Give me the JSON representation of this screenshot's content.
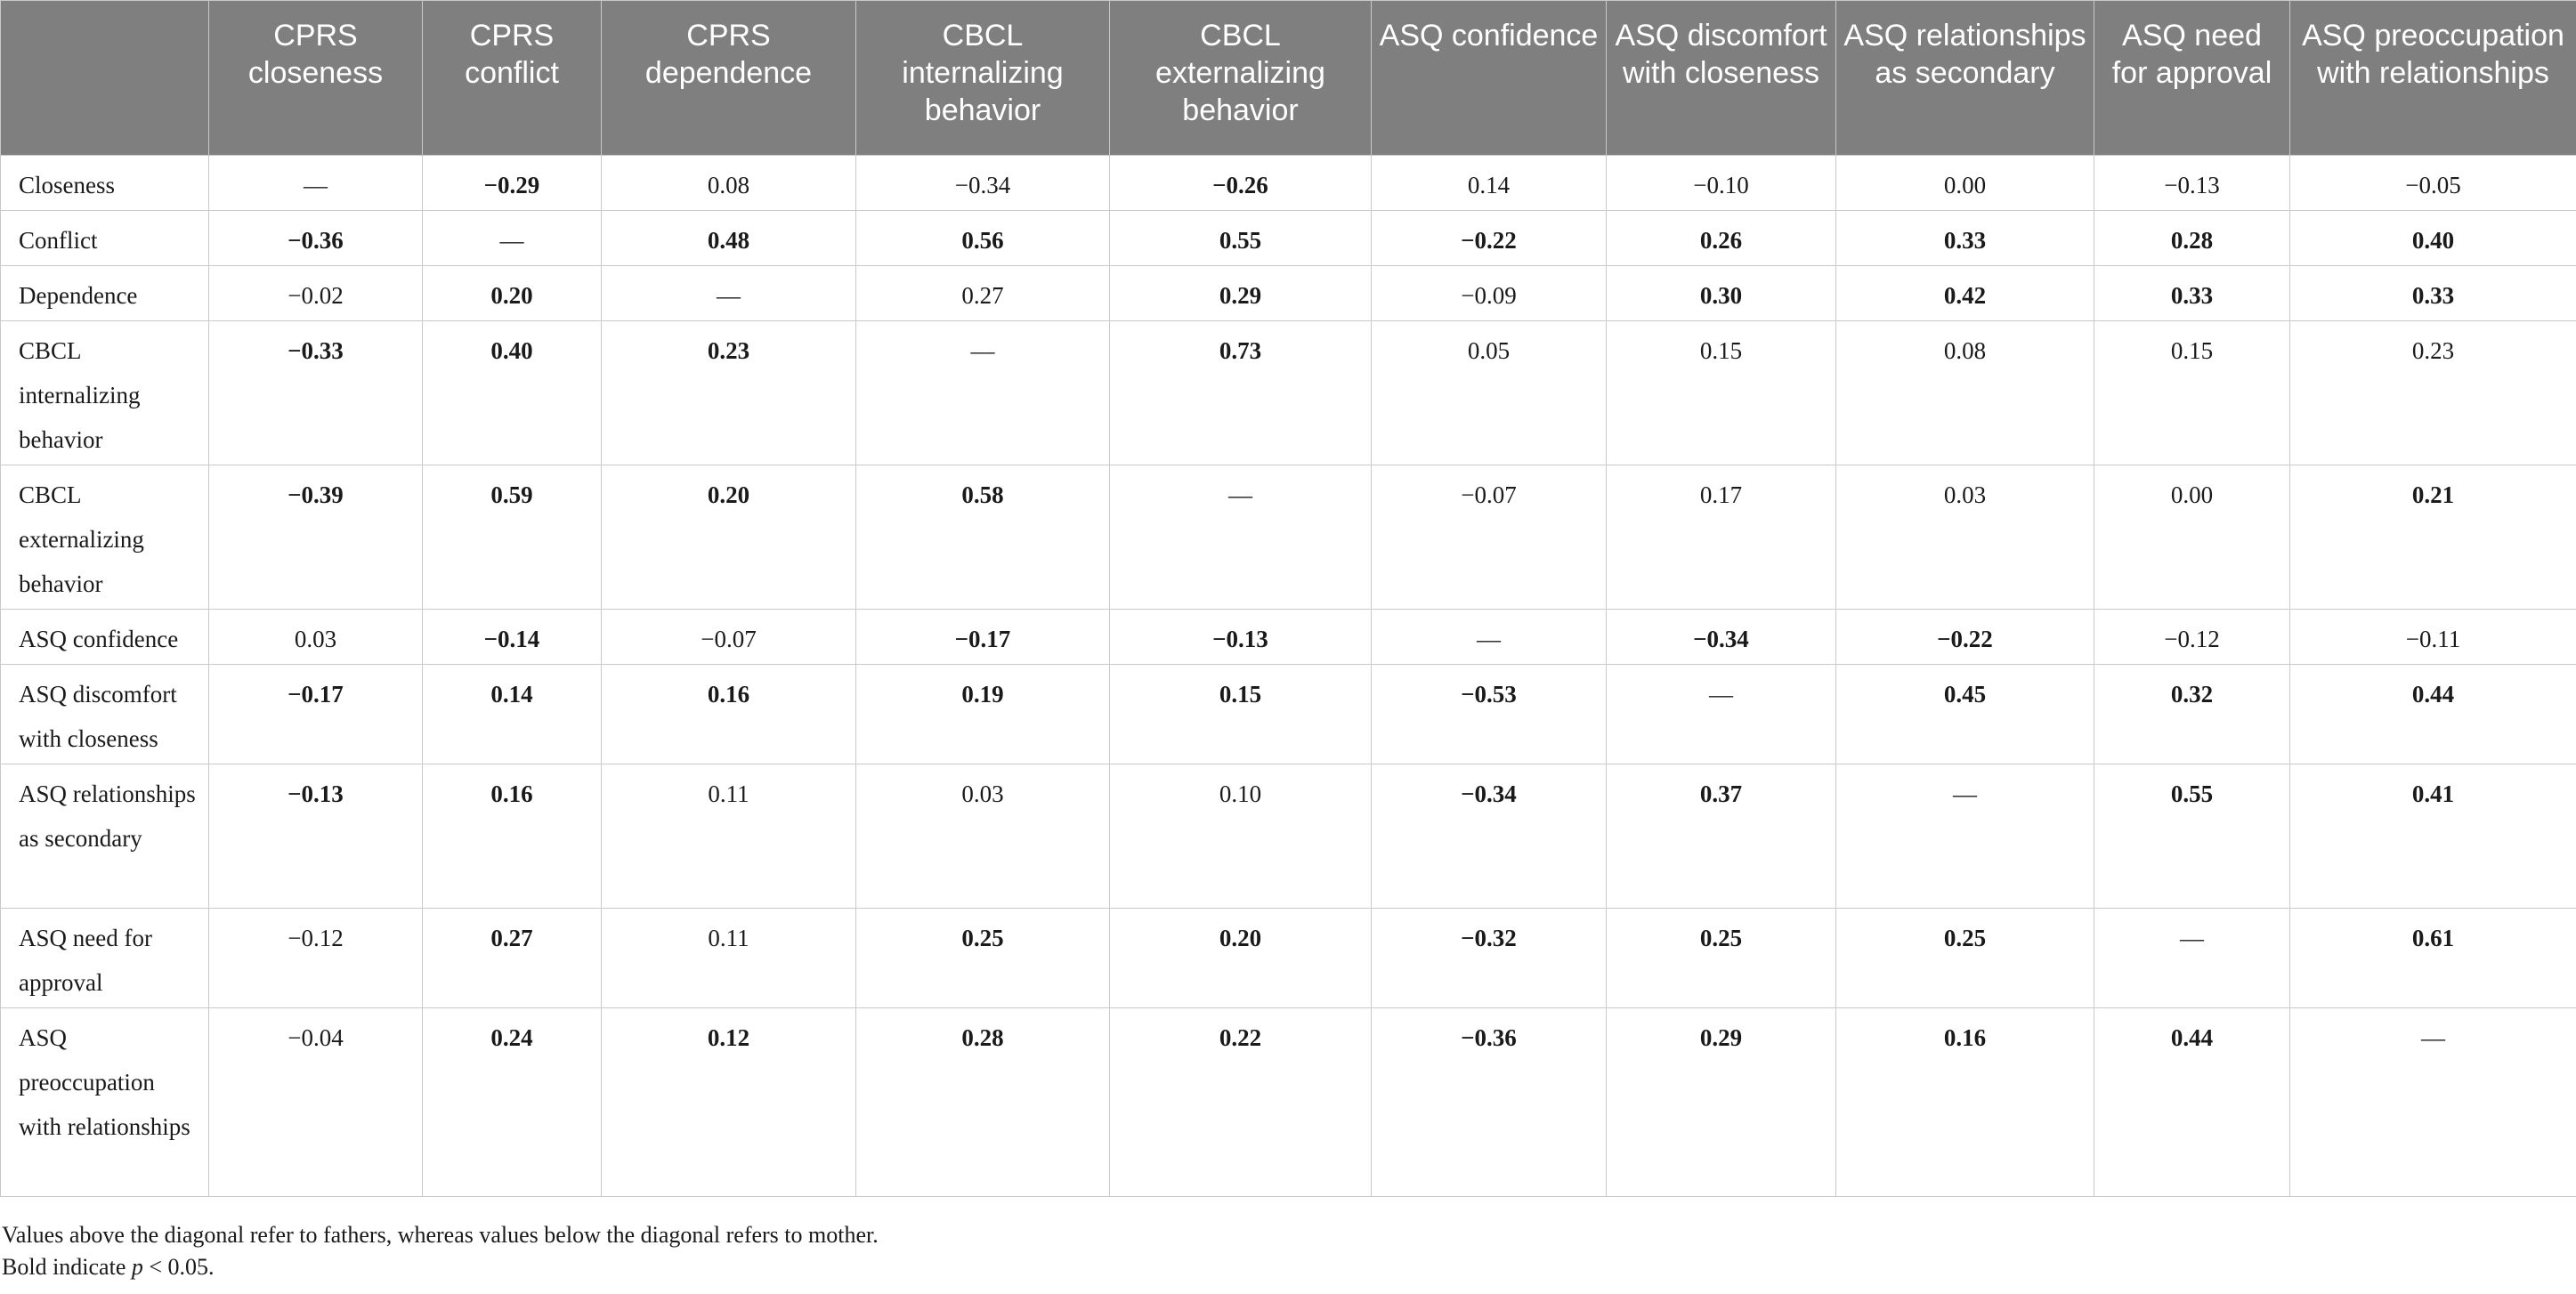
{
  "table": {
    "columns": [
      "CPRS closeness",
      "CPRS conflict",
      "CPRS dependence",
      "CBCL internalizing behavior",
      "CBCL externalizing behavior",
      "ASQ confidence",
      "ASQ discomfort with closeness",
      "ASQ relationships as secondary",
      "ASQ need for approval",
      "ASQ preoccupation with relationships"
    ],
    "rows": [
      {
        "label": "Closeness",
        "cells": [
          {
            "v": "—",
            "b": false
          },
          {
            "v": "−0.29",
            "b": true
          },
          {
            "v": "0.08",
            "b": false
          },
          {
            "v": "−0.34",
            "b": false
          },
          {
            "v": "−0.26",
            "b": true
          },
          {
            "v": "0.14",
            "b": false
          },
          {
            "v": "−0.10",
            "b": false
          },
          {
            "v": "0.00",
            "b": false
          },
          {
            "v": "−0.13",
            "b": false
          },
          {
            "v": "−0.05",
            "b": false
          }
        ]
      },
      {
        "label": "Conflict",
        "cells": [
          {
            "v": "−0.36",
            "b": true
          },
          {
            "v": "—",
            "b": false
          },
          {
            "v": "0.48",
            "b": true
          },
          {
            "v": "0.56",
            "b": true
          },
          {
            "v": "0.55",
            "b": true
          },
          {
            "v": "−0.22",
            "b": true
          },
          {
            "v": "0.26",
            "b": true
          },
          {
            "v": "0.33",
            "b": true
          },
          {
            "v": "0.28",
            "b": true
          },
          {
            "v": "0.40",
            "b": true
          }
        ]
      },
      {
        "label": "Dependence",
        "cells": [
          {
            "v": "−0.02",
            "b": false
          },
          {
            "v": "0.20",
            "b": true
          },
          {
            "v": "—",
            "b": false
          },
          {
            "v": "0.27",
            "b": false
          },
          {
            "v": "0.29",
            "b": true
          },
          {
            "v": "−0.09",
            "b": false
          },
          {
            "v": "0.30",
            "b": true
          },
          {
            "v": "0.42",
            "b": true
          },
          {
            "v": "0.33",
            "b": true
          },
          {
            "v": "0.33",
            "b": true
          }
        ]
      },
      {
        "label": "CBCL internalizing behavior",
        "cells": [
          {
            "v": "−0.33",
            "b": true
          },
          {
            "v": "0.40",
            "b": true
          },
          {
            "v": "0.23",
            "b": true
          },
          {
            "v": "—",
            "b": false
          },
          {
            "v": "0.73",
            "b": true
          },
          {
            "v": "0.05",
            "b": false
          },
          {
            "v": "0.15",
            "b": false
          },
          {
            "v": "0.08",
            "b": false
          },
          {
            "v": "0.15",
            "b": false
          },
          {
            "v": "0.23",
            "b": false
          }
        ]
      },
      {
        "label": "CBCL externalizing behavior",
        "cells": [
          {
            "v": "−0.39",
            "b": true
          },
          {
            "v": "0.59",
            "b": true
          },
          {
            "v": "0.20",
            "b": true
          },
          {
            "v": "0.58",
            "b": true
          },
          {
            "v": "—",
            "b": false
          },
          {
            "v": "−0.07",
            "b": false
          },
          {
            "v": "0.17",
            "b": false
          },
          {
            "v": "0.03",
            "b": false
          },
          {
            "v": "0.00",
            "b": false
          },
          {
            "v": "0.21",
            "b": true
          }
        ]
      },
      {
        "label": "ASQ confidence",
        "cells": [
          {
            "v": "0.03",
            "b": false
          },
          {
            "v": "−0.14",
            "b": true
          },
          {
            "v": "−0.07",
            "b": false
          },
          {
            "v": "−0.17",
            "b": true
          },
          {
            "v": "−0.13",
            "b": true
          },
          {
            "v": "—",
            "b": false
          },
          {
            "v": "−0.34",
            "b": true
          },
          {
            "v": "−0.22",
            "b": true
          },
          {
            "v": "−0.12",
            "b": false
          },
          {
            "v": "−0.11",
            "b": false
          }
        ]
      },
      {
        "label": "ASQ discomfort with closeness",
        "cells": [
          {
            "v": "−0.17",
            "b": true
          },
          {
            "v": "0.14",
            "b": true
          },
          {
            "v": "0.16",
            "b": true
          },
          {
            "v": "0.19",
            "b": true
          },
          {
            "v": "0.15",
            "b": true
          },
          {
            "v": "−0.53",
            "b": true
          },
          {
            "v": "—",
            "b": false
          },
          {
            "v": "0.45",
            "b": true
          },
          {
            "v": "0.32",
            "b": true
          },
          {
            "v": "0.44",
            "b": true
          }
        ]
      },
      {
        "label": "ASQ relationships as secondary",
        "cells": [
          {
            "v": "−0.13",
            "b": true
          },
          {
            "v": "0.16",
            "b": true
          },
          {
            "v": "0.11",
            "b": false
          },
          {
            "v": "0.03",
            "b": false
          },
          {
            "v": "0.10",
            "b": false
          },
          {
            "v": "−0.34",
            "b": true
          },
          {
            "v": "0.37",
            "b": true
          },
          {
            "v": "—",
            "b": false
          },
          {
            "v": "0.55",
            "b": true
          },
          {
            "v": "0.41",
            "b": true
          }
        ]
      },
      {
        "label": "ASQ need for approval",
        "cells": [
          {
            "v": "−0.12",
            "b": false
          },
          {
            "v": "0.27",
            "b": true
          },
          {
            "v": "0.11",
            "b": false
          },
          {
            "v": "0.25",
            "b": true
          },
          {
            "v": "0.20",
            "b": true
          },
          {
            "v": "−0.32",
            "b": true
          },
          {
            "v": "0.25",
            "b": true
          },
          {
            "v": "0.25",
            "b": true
          },
          {
            "v": "—",
            "b": false
          },
          {
            "v": "0.61",
            "b": true
          }
        ]
      },
      {
        "label": "ASQ preoccupation with relationships",
        "cells": [
          {
            "v": "−0.04",
            "b": false
          },
          {
            "v": "0.24",
            "b": true
          },
          {
            "v": "0.12",
            "b": true
          },
          {
            "v": "0.28",
            "b": true
          },
          {
            "v": "0.22",
            "b": true
          },
          {
            "v": "−0.36",
            "b": true
          },
          {
            "v": "0.29",
            "b": true
          },
          {
            "v": "0.16",
            "b": true
          },
          {
            "v": "0.44",
            "b": true
          },
          {
            "v": "—",
            "b": false
          }
        ]
      }
    ]
  },
  "notes": {
    "line1": "Values above the diagonal refer to fathers, whereas values below the diagonal refers to mother.",
    "line2_prefix": "Bold indicate ",
    "line2_p": "p",
    "line2_suffix": " < 0.05."
  }
}
